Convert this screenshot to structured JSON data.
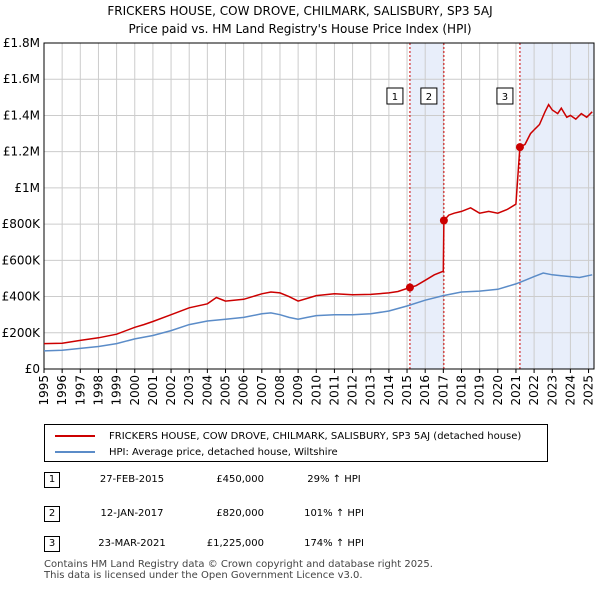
{
  "chart_data": {
    "type": "line",
    "title": "FRICKERS HOUSE, COW DROVE, CHILMARK, SALISBURY, SP3 5AJ",
    "subtitle": "Price paid vs. HM Land Registry's House Price Index (HPI)",
    "xlim": [
      1995,
      2025.3
    ],
    "ylim": [
      0,
      1800000
    ],
    "yticks": [
      {
        "v": 0,
        "label": "£0"
      },
      {
        "v": 200000,
        "label": "£200K"
      },
      {
        "v": 400000,
        "label": "£400K"
      },
      {
        "v": 600000,
        "label": "£600K"
      },
      {
        "v": 800000,
        "label": "£800K"
      },
      {
        "v": 1000000,
        "label": "£1M"
      },
      {
        "v": 1200000,
        "label": "£1.2M"
      },
      {
        "v": 1400000,
        "label": "£1.4M"
      },
      {
        "v": 1600000,
        "label": "£1.6M"
      },
      {
        "v": 1800000,
        "label": "£1.8M"
      }
    ],
    "xticks": [
      "1995",
      "1996",
      "1997",
      "1998",
      "1999",
      "2000",
      "2001",
      "2002",
      "2003",
      "2004",
      "2005",
      "2006",
      "2007",
      "2008",
      "2009",
      "2010",
      "2011",
      "2012",
      "2013",
      "2014",
      "2015",
      "2016",
      "2017",
      "2018",
      "2019",
      "2020",
      "2021",
      "2022",
      "2023",
      "2024",
      "2025"
    ],
    "shaded_ranges": [
      [
        2015.16,
        2017.03
      ],
      [
        2021.22,
        2025.3
      ]
    ],
    "series": [
      {
        "name": "FRICKERS HOUSE, COW DROVE, CHILMARK, SALISBURY, SP3 5AJ (detached house)",
        "color": "#cc0000",
        "x": [
          1995.0,
          1996.0,
          1997.0,
          1998.0,
          1999.0,
          2000.0,
          2000.5,
          2001.0,
          2002.0,
          2003.0,
          2004.0,
          2004.5,
          2005.0,
          2006.0,
          2007.0,
          2007.5,
          2008.0,
          2008.5,
          2009.0,
          2009.5,
          2010.0,
          2011.0,
          2012.0,
          2013.0,
          2014.0,
          2014.5,
          2015.16,
          2015.5,
          2016.0,
          2016.5,
          2017.0,
          2017.03,
          2017.3,
          2017.6,
          2018.0,
          2018.5,
          2019.0,
          2019.5,
          2020.0,
          2020.5,
          2021.0,
          2021.22,
          2021.5,
          2021.8,
          2022.0,
          2022.3,
          2022.6,
          2022.8,
          2023.0,
          2023.3,
          2023.5,
          2023.8,
          2024.0,
          2024.3,
          2024.6,
          2024.9,
          2025.2
        ],
        "y": [
          140000,
          142000,
          158000,
          172000,
          192000,
          230000,
          245000,
          262000,
          300000,
          338000,
          360000,
          395000,
          375000,
          385000,
          415000,
          425000,
          420000,
          400000,
          375000,
          390000,
          405000,
          415000,
          410000,
          412000,
          420000,
          428000,
          450000,
          460000,
          490000,
          520000,
          540000,
          820000,
          850000,
          860000,
          870000,
          890000,
          860000,
          870000,
          860000,
          880000,
          910000,
          1225000,
          1240000,
          1300000,
          1320000,
          1350000,
          1420000,
          1460000,
          1430000,
          1410000,
          1440000,
          1390000,
          1400000,
          1380000,
          1410000,
          1390000,
          1420000
        ]
      },
      {
        "name": "HPI: Average price, detached house, Wiltshire",
        "color": "#5b8cc8",
        "x": [
          1995.0,
          1996.0,
          1997.0,
          1998.0,
          1999.0,
          2000.0,
          2001.0,
          2002.0,
          2003.0,
          2004.0,
          2005.0,
          2006.0,
          2007.0,
          2007.5,
          2008.0,
          2008.5,
          2009.0,
          2009.5,
          2010.0,
          2011.0,
          2012.0,
          2013.0,
          2014.0,
          2015.0,
          2016.0,
          2017.0,
          2018.0,
          2019.0,
          2020.0,
          2021.0,
          2021.5,
          2022.0,
          2022.5,
          2023.0,
          2023.5,
          2024.0,
          2024.5,
          2025.2
        ],
        "y": [
          100000,
          104000,
          114000,
          124000,
          140000,
          166000,
          185000,
          212000,
          245000,
          265000,
          275000,
          285000,
          305000,
          310000,
          300000,
          285000,
          275000,
          285000,
          295000,
          300000,
          300000,
          305000,
          320000,
          348000,
          380000,
          405000,
          425000,
          430000,
          440000,
          470000,
          490000,
          510000,
          530000,
          520000,
          515000,
          510000,
          505000,
          520000
        ]
      }
    ],
    "markers": [
      {
        "label": "1",
        "x": 2015.16,
        "y": 450000
      },
      {
        "label": "2",
        "x": 2017.03,
        "y": 820000
      },
      {
        "label": "3",
        "x": 2021.22,
        "y": 1225000
      }
    ]
  },
  "legend": {
    "red_label": "FRICKERS HOUSE, COW DROVE, CHILMARK, SALISBURY, SP3 5AJ (detached house)",
    "blue_label": "HPI: Average price, detached house, Wiltshire"
  },
  "transactions": [
    {
      "num": "1",
      "date": "27-FEB-2015",
      "price": "£450,000",
      "hpi": "29% ↑ HPI"
    },
    {
      "num": "2",
      "date": "12-JAN-2017",
      "price": "£820,000",
      "hpi": "101% ↑ HPI"
    },
    {
      "num": "3",
      "date": "23-MAR-2021",
      "price": "£1,225,000",
      "hpi": "174% ↑ HPI"
    }
  ],
  "footer": {
    "line1": "Contains HM Land Registry data © Crown copyright and database right 2025.",
    "line2": "This data is licensed under the Open Government Licence v3.0."
  },
  "colors": {
    "red": "#cc0000",
    "blue": "#5b8cc8",
    "shade": "#e8eefa",
    "grid": "#cccccc"
  }
}
